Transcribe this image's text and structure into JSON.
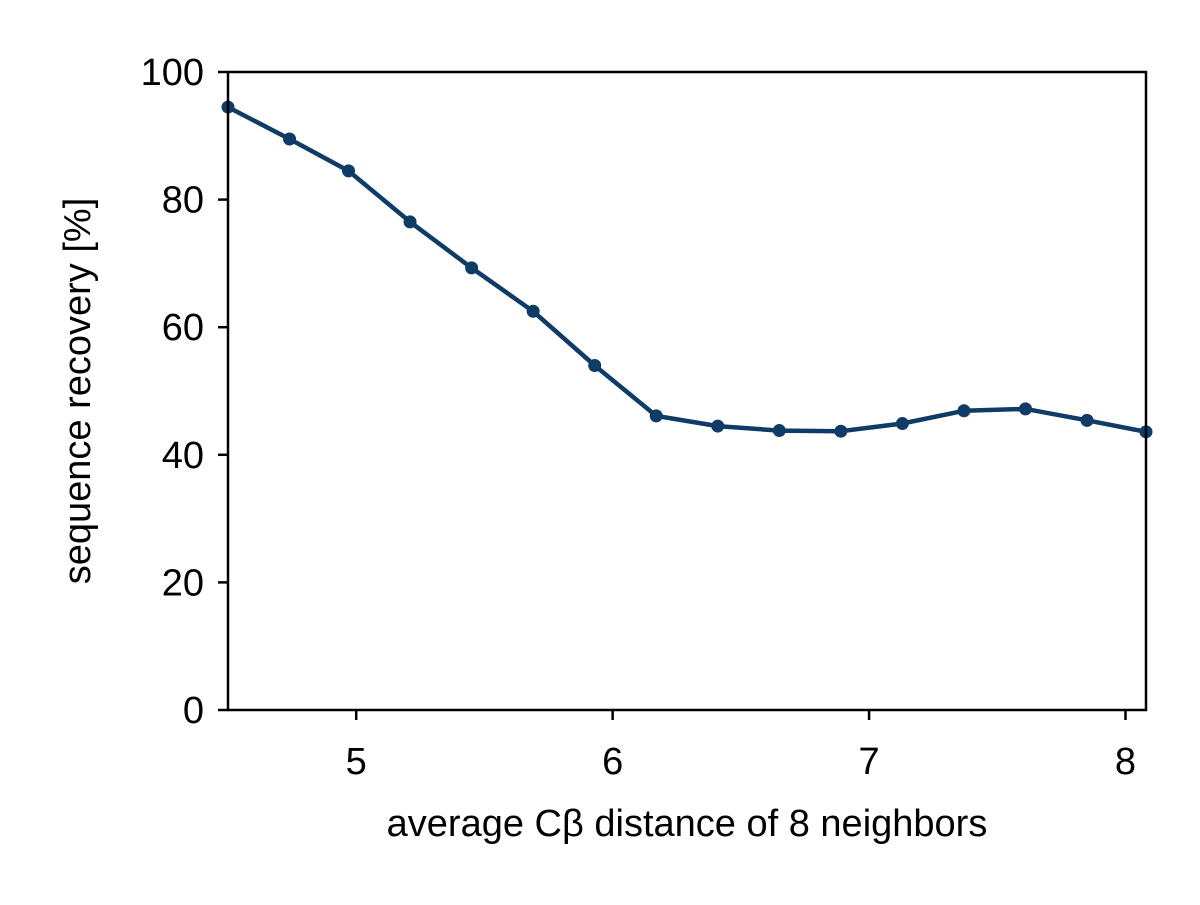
{
  "chart_data": {
    "type": "line",
    "title": "",
    "xlabel": "average Cβ distance of 8 neighbors",
    "ylabel": "sequence recovery [%]",
    "xlim": [
      4.5,
      8.08
    ],
    "ylim": [
      0,
      100
    ],
    "xticks": [
      5,
      6,
      7,
      8
    ],
    "yticks": [
      0,
      20,
      40,
      60,
      80,
      100
    ],
    "grid": false,
    "legend": "none",
    "series": [
      {
        "color": "#0f3c66",
        "marker": "circle",
        "x": [
          4.5,
          4.74,
          4.97,
          5.21,
          5.45,
          5.69,
          5.93,
          6.17,
          6.41,
          6.65,
          6.89,
          7.13,
          7.37,
          7.61,
          7.85,
          8.08
        ],
        "y": [
          94.5,
          89.5,
          84.5,
          76.5,
          69.3,
          62.5,
          54.0,
          46.1,
          44.5,
          43.8,
          43.7,
          44.9,
          46.9,
          47.2,
          45.4,
          43.6
        ]
      }
    ]
  }
}
